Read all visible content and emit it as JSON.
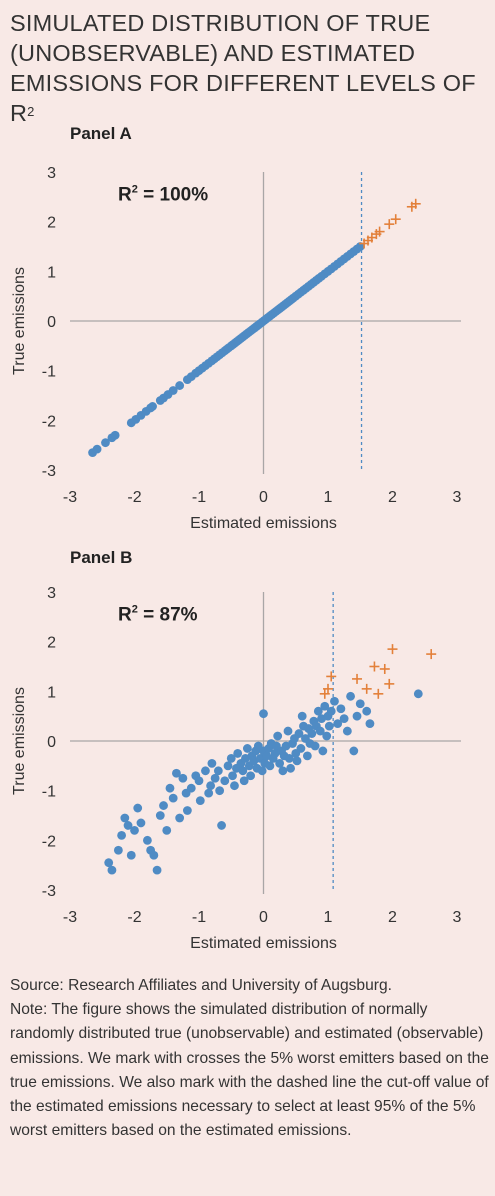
{
  "title": {
    "main": "SIMULATED DISTRIBUTION OF TRUE (UNOBSERVABLE) AND ESTIMATED EMISSIONS FOR DIFFERENT LEVELS OF R",
    "superscript": "2"
  },
  "source": "Source: Research Affiliates and University of Augsburg.",
  "note": "Note: The figure shows the simulated distribution of normally randomly distributed true (unobservable) and estimated (observable) emissions. We mark with crosses the 5% worst emitters based on the true emissions. We also mark with the dashed line the cut-off value of the estimated emissions necessary to select at least 95% of the 5% worst emitters based on the estimated emissions.",
  "colors": {
    "dots": "#4f8bc4",
    "crosses": "#e3803a",
    "axis": "#a9a6a6",
    "cutoff": "#4f8bc4",
    "background": "#f8e9e6"
  },
  "chart_data": [
    {
      "type": "scatter",
      "panel_label": "Panel A",
      "annotation": {
        "prefix": "R",
        "sup": "2",
        "suffix": " = 100%"
      },
      "xlabel": "Estimated emissions",
      "ylabel": "True emissions",
      "xlim": [
        -3,
        3
      ],
      "ylim": [
        -3,
        3
      ],
      "xticks": [
        "-3",
        "-2",
        "-1",
        "0",
        "1",
        "2",
        "3"
      ],
      "yticks": [
        "3",
        "2",
        "1",
        "0",
        "-1",
        "-2",
        "-3"
      ],
      "cutoff_x": 1.52,
      "points": [
        [
          -2.65,
          -2.65
        ],
        [
          -2.58,
          -2.58
        ],
        [
          -2.45,
          -2.45
        ],
        [
          -2.35,
          -2.35
        ],
        [
          -2.3,
          -2.3
        ],
        [
          -2.05,
          -2.05
        ],
        [
          -1.98,
          -1.98
        ],
        [
          -1.9,
          -1.9
        ],
        [
          -1.82,
          -1.82
        ],
        [
          -1.75,
          -1.75
        ],
        [
          -1.72,
          -1.72
        ],
        [
          -1.6,
          -1.6
        ],
        [
          -1.55,
          -1.55
        ],
        [
          -1.48,
          -1.48
        ],
        [
          -1.4,
          -1.4
        ],
        [
          -1.3,
          -1.3
        ],
        [
          -1.18,
          -1.18
        ],
        [
          -1.12,
          -1.12
        ],
        [
          -1.05,
          -1.05
        ],
        [
          -1.0,
          -1.0
        ],
        [
          -0.95,
          -0.95
        ],
        [
          -0.9,
          -0.9
        ],
        [
          -0.85,
          -0.85
        ],
        [
          -0.8,
          -0.8
        ],
        [
          -0.76,
          -0.76
        ],
        [
          -0.72,
          -0.72
        ],
        [
          -0.68,
          -0.68
        ],
        [
          -0.64,
          -0.64
        ],
        [
          -0.6,
          -0.6
        ],
        [
          -0.57,
          -0.57
        ],
        [
          -0.54,
          -0.54
        ],
        [
          -0.5,
          -0.5
        ],
        [
          -0.47,
          -0.47
        ],
        [
          -0.44,
          -0.44
        ],
        [
          -0.41,
          -0.41
        ],
        [
          -0.38,
          -0.38
        ],
        [
          -0.35,
          -0.35
        ],
        [
          -0.32,
          -0.32
        ],
        [
          -0.29,
          -0.29
        ],
        [
          -0.26,
          -0.26
        ],
        [
          -0.23,
          -0.23
        ],
        [
          -0.2,
          -0.2
        ],
        [
          -0.17,
          -0.17
        ],
        [
          -0.14,
          -0.14
        ],
        [
          -0.11,
          -0.11
        ],
        [
          -0.08,
          -0.08
        ],
        [
          -0.05,
          -0.05
        ],
        [
          -0.02,
          -0.02
        ],
        [
          0.01,
          0.01
        ],
        [
          0.04,
          0.04
        ],
        [
          0.07,
          0.07
        ],
        [
          0.1,
          0.1
        ],
        [
          0.13,
          0.13
        ],
        [
          0.16,
          0.16
        ],
        [
          0.19,
          0.19
        ],
        [
          0.22,
          0.22
        ],
        [
          0.25,
          0.25
        ],
        [
          0.28,
          0.28
        ],
        [
          0.31,
          0.31
        ],
        [
          0.34,
          0.34
        ],
        [
          0.37,
          0.37
        ],
        [
          0.4,
          0.4
        ],
        [
          0.43,
          0.43
        ],
        [
          0.46,
          0.46
        ],
        [
          0.5,
          0.5
        ],
        [
          0.54,
          0.54
        ],
        [
          0.58,
          0.58
        ],
        [
          0.62,
          0.62
        ],
        [
          0.66,
          0.66
        ],
        [
          0.7,
          0.7
        ],
        [
          0.74,
          0.74
        ],
        [
          0.78,
          0.78
        ],
        [
          0.82,
          0.82
        ],
        [
          0.86,
          0.86
        ],
        [
          0.9,
          0.9
        ],
        [
          0.95,
          0.95
        ],
        [
          1.0,
          1.0
        ],
        [
          1.05,
          1.05
        ],
        [
          1.1,
          1.1
        ],
        [
          1.15,
          1.15
        ],
        [
          1.2,
          1.2
        ],
        [
          1.25,
          1.25
        ],
        [
          1.3,
          1.3
        ],
        [
          1.35,
          1.35
        ],
        [
          1.4,
          1.4
        ],
        [
          1.45,
          1.45
        ],
        [
          1.5,
          1.5
        ]
      ],
      "crosses": [
        [
          1.56,
          1.56
        ],
        [
          1.62,
          1.62
        ],
        [
          1.68,
          1.68
        ],
        [
          1.75,
          1.75
        ],
        [
          1.8,
          1.8
        ],
        [
          1.95,
          1.95
        ],
        [
          2.05,
          2.05
        ],
        [
          2.3,
          2.3
        ],
        [
          2.36,
          2.36
        ]
      ]
    },
    {
      "type": "scatter",
      "panel_label": "Panel B",
      "annotation": {
        "prefix": "R",
        "sup": "2",
        "suffix": " = 87%"
      },
      "xlabel": "Estimated emissions",
      "ylabel": "True emissions",
      "xlim": [
        -3,
        3
      ],
      "ylim": [
        -3,
        3
      ],
      "xticks": [
        "-3",
        "-2",
        "-1",
        "0",
        "1",
        "2",
        "3"
      ],
      "yticks": [
        "3",
        "2",
        "1",
        "0",
        "-1",
        "-2",
        "-3"
      ],
      "cutoff_x": 1.08,
      "points": [
        [
          -2.4,
          -2.45
        ],
        [
          -2.35,
          -2.6
        ],
        [
          -2.25,
          -2.2
        ],
        [
          -2.2,
          -1.9
        ],
        [
          -2.15,
          -1.55
        ],
        [
          -2.1,
          -1.7
        ],
        [
          -2.05,
          -2.3
        ],
        [
          -2.0,
          -1.8
        ],
        [
          -1.95,
          -1.35
        ],
        [
          -1.9,
          -1.65
        ],
        [
          -1.8,
          -2.0
        ],
        [
          -1.75,
          -2.2
        ],
        [
          -1.7,
          -2.3
        ],
        [
          -1.65,
          -2.6
        ],
        [
          -1.6,
          -1.5
        ],
        [
          -1.55,
          -1.3
        ],
        [
          -1.5,
          -1.8
        ],
        [
          -1.45,
          -0.95
        ],
        [
          -1.4,
          -1.15
        ],
        [
          -1.35,
          -0.65
        ],
        [
          -1.3,
          -1.55
        ],
        [
          -1.25,
          -0.75
        ],
        [
          -1.2,
          -1.05
        ],
        [
          -1.18,
          -1.4
        ],
        [
          -1.12,
          -0.95
        ],
        [
          -1.05,
          -0.7
        ],
        [
          -1.0,
          -0.8
        ],
        [
          -0.98,
          -1.2
        ],
        [
          -0.9,
          -0.6
        ],
        [
          -0.85,
          -1.05
        ],
        [
          -0.82,
          -0.9
        ],
        [
          -0.8,
          -0.45
        ],
        [
          -0.75,
          -0.75
        ],
        [
          -0.7,
          -0.6
        ],
        [
          -0.68,
          -1.0
        ],
        [
          -0.65,
          -1.7
        ],
        [
          -0.6,
          -0.8
        ],
        [
          -0.55,
          -0.5
        ],
        [
          -0.5,
          -0.35
        ],
        [
          -0.48,
          -0.7
        ],
        [
          -0.45,
          -0.9
        ],
        [
          -0.42,
          -0.55
        ],
        [
          -0.4,
          -0.25
        ],
        [
          -0.35,
          -0.45
        ],
        [
          -0.32,
          -0.6
        ],
        [
          -0.3,
          -0.8
        ],
        [
          -0.28,
          -0.35
        ],
        [
          -0.25,
          -0.15
        ],
        [
          -0.22,
          -0.5
        ],
        [
          -0.2,
          -0.7
        ],
        [
          -0.18,
          -0.3
        ],
        [
          -0.15,
          -0.4
        ],
        [
          -0.12,
          -0.2
        ],
        [
          -0.1,
          -0.55
        ],
        [
          -0.08,
          -0.1
        ],
        [
          -0.05,
          -0.35
        ],
        [
          -0.02,
          -0.6
        ],
        [
          0.0,
          0.55
        ],
        [
          0.0,
          -0.2
        ],
        [
          0.02,
          -0.45
        ],
        [
          0.05,
          -0.3
        ],
        [
          0.08,
          -0.15
        ],
        [
          0.1,
          -0.5
        ],
        [
          0.12,
          -0.05
        ],
        [
          0.15,
          -0.35
        ],
        [
          0.18,
          -0.25
        ],
        [
          0.2,
          -0.1
        ],
        [
          0.22,
          0.1
        ],
        [
          0.25,
          -0.45
        ],
        [
          0.28,
          -0.2
        ],
        [
          0.3,
          -0.6
        ],
        [
          0.32,
          -0.3
        ],
        [
          0.35,
          -0.1
        ],
        [
          0.38,
          0.2
        ],
        [
          0.4,
          -0.35
        ],
        [
          0.42,
          -0.55
        ],
        [
          0.45,
          -0.05
        ],
        [
          0.48,
          0.05
        ],
        [
          0.5,
          -0.25
        ],
        [
          0.52,
          -0.4
        ],
        [
          0.55,
          0.15
        ],
        [
          0.58,
          -0.15
        ],
        [
          0.6,
          0.5
        ],
        [
          0.62,
          0.3
        ],
        [
          0.65,
          0.05
        ],
        [
          0.68,
          -0.3
        ],
        [
          0.7,
          0.25
        ],
        [
          0.72,
          -0.05
        ],
        [
          0.75,
          0.15
        ],
        [
          0.78,
          0.4
        ],
        [
          0.8,
          -0.1
        ],
        [
          0.82,
          0.3
        ],
        [
          0.85,
          0.6
        ],
        [
          0.88,
          0.2
        ],
        [
          0.9,
          0.45
        ],
        [
          0.92,
          -0.2
        ],
        [
          0.95,
          0.7
        ],
        [
          0.98,
          0.1
        ],
        [
          1.0,
          0.5
        ],
        [
          1.02,
          0.3
        ],
        [
          1.05,
          0.6
        ],
        [
          1.1,
          0.8
        ],
        [
          1.15,
          0.35
        ],
        [
          1.2,
          0.65
        ],
        [
          1.25,
          0.45
        ],
        [
          1.3,
          0.2
        ],
        [
          1.35,
          0.9
        ],
        [
          1.4,
          -0.2
        ],
        [
          1.45,
          0.5
        ],
        [
          1.5,
          0.75
        ],
        [
          1.6,
          0.6
        ],
        [
          1.65,
          0.35
        ],
        [
          2.4,
          0.95
        ]
      ],
      "crosses": [
        [
          0.95,
          0.95
        ],
        [
          1.0,
          1.05
        ],
        [
          1.05,
          1.3
        ],
        [
          1.45,
          1.25
        ],
        [
          1.6,
          1.05
        ],
        [
          1.72,
          1.5
        ],
        [
          1.78,
          0.95
        ],
        [
          1.88,
          1.45
        ],
        [
          1.95,
          1.15
        ],
        [
          2.0,
          1.85
        ],
        [
          2.6,
          1.75
        ]
      ]
    }
  ]
}
